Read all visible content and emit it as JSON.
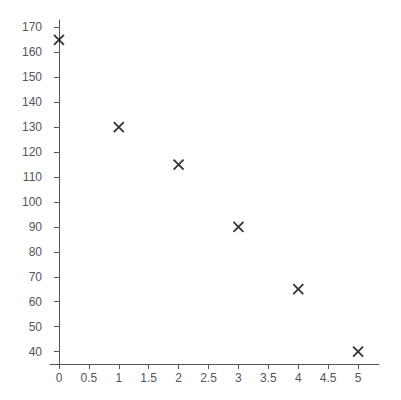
{
  "chart_data": {
    "type": "scatter",
    "x": [
      0,
      1,
      2,
      3,
      4,
      5
    ],
    "values": [
      165,
      130,
      115,
      90,
      65,
      40
    ],
    "marker": "x",
    "color": "black",
    "xlim": [
      -0.15,
      5.35
    ],
    "ylim": [
      35,
      173
    ],
    "xticks": [
      0,
      0.5,
      1,
      1.5,
      2,
      2.5,
      3,
      3.5,
      4,
      4.5,
      5
    ],
    "yticks": [
      40,
      50,
      60,
      70,
      80,
      90,
      100,
      110,
      120,
      130,
      140,
      150,
      160,
      170
    ],
    "grid": false
  }
}
